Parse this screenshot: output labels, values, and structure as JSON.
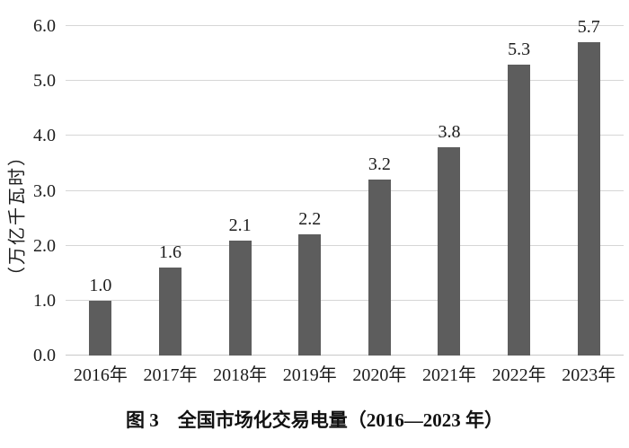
{
  "chart_data": {
    "type": "bar",
    "title": "图 3　全国市场化交易电量（2016—2023 年）",
    "ylabel": "（万亿千瓦时）",
    "xlabel": "",
    "categories": [
      "2016年",
      "2017年",
      "2018年",
      "2019年",
      "2020年",
      "2021年",
      "2022年",
      "2023年"
    ],
    "values": [
      1.0,
      1.6,
      2.1,
      2.2,
      3.2,
      3.8,
      5.3,
      5.7
    ],
    "bar_labels": [
      "1.0",
      "1.6",
      "2.1",
      "2.2",
      "3.2",
      "3.8",
      "5.3",
      "5.7"
    ],
    "yticks": [
      0,
      1,
      2,
      3,
      4,
      5,
      6
    ],
    "ytick_labels": [
      "0.0",
      "1.0",
      "2.0",
      "3.0",
      "4.0",
      "5.0",
      "6.0"
    ],
    "ylim": [
      0,
      6
    ],
    "grid": true,
    "legend": "none",
    "colors": {
      "bar": "#5d5d5d",
      "gridline": "#d6d6d6",
      "baseline": "#c8c8c8",
      "text": "#1c1c1c",
      "background": "#ffffff"
    }
  }
}
